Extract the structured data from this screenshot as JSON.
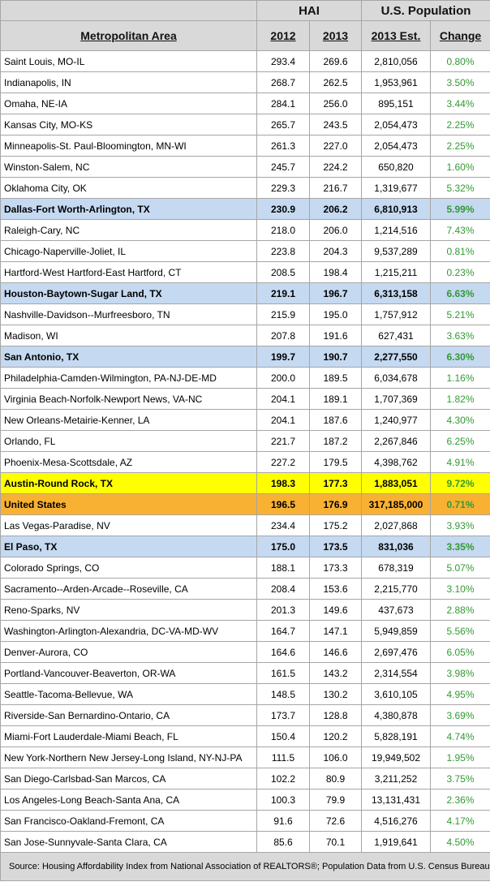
{
  "header": {
    "groups": [
      "HAI",
      "U.S. Population"
    ],
    "columns": [
      "Metropolitan Area",
      "2012",
      "2013",
      "2013 Est.",
      "Change"
    ]
  },
  "rows": [
    [
      "Saint Louis, MO-IL",
      "293.4",
      "269.6",
      "2,810,056",
      "0.80%"
    ],
    [
      "Indianapolis, IN",
      "268.7",
      "262.5",
      "1,953,961",
      "3.50%"
    ],
    [
      "Omaha, NE-IA",
      "284.1",
      "256.0",
      "895,151",
      "3.44%"
    ],
    [
      "Kansas City, MO-KS",
      "265.7",
      "243.5",
      "2,054,473",
      "2.25%"
    ],
    [
      "Minneapolis-St. Paul-Bloomington, MN-WI",
      "261.3",
      "227.0",
      "2,054,473",
      "2.25%"
    ],
    [
      "Winston-Salem, NC",
      "245.7",
      "224.2",
      "650,820",
      "1.60%"
    ],
    [
      "Oklahoma City, OK",
      "229.3",
      "216.7",
      "1,319,677",
      "5.32%"
    ],
    [
      "Dallas-Fort Worth-Arlington, TX",
      "230.9",
      "206.2",
      "6,810,913",
      "5.99%"
    ],
    [
      "Raleigh-Cary, NC",
      "218.0",
      "206.0",
      "1,214,516",
      "7.43%"
    ],
    [
      "Chicago-Naperville-Joliet, IL",
      "223.8",
      "204.3",
      "9,537,289",
      "0.81%"
    ],
    [
      "Hartford-West Hartford-East Hartford, CT",
      "208.5",
      "198.4",
      "1,215,211",
      "0.23%"
    ],
    [
      "Houston-Baytown-Sugar Land, TX",
      "219.1",
      "196.7",
      "6,313,158",
      "6.63%"
    ],
    [
      "Nashville-Davidson--Murfreesboro, TN",
      "215.9",
      "195.0",
      "1,757,912",
      "5.21%"
    ],
    [
      "Madison, WI",
      "207.8",
      "191.6",
      "627,431",
      "3.63%"
    ],
    [
      "San Antonio, TX",
      "199.7",
      "190.7",
      "2,277,550",
      "6.30%"
    ],
    [
      "Philadelphia-Camden-Wilmington, PA-NJ-DE-MD",
      "200.0",
      "189.5",
      "6,034,678",
      "1.16%"
    ],
    [
      "Virginia Beach-Norfolk-Newport News, VA-NC",
      "204.1",
      "189.1",
      "1,707,369",
      "1.82%"
    ],
    [
      "New Orleans-Metairie-Kenner, LA",
      "204.1",
      "187.6",
      "1,240,977",
      "4.30%"
    ],
    [
      "Orlando, FL",
      "221.7",
      "187.2",
      "2,267,846",
      "6.25%"
    ],
    [
      "Phoenix-Mesa-Scottsdale, AZ",
      "227.2",
      "179.5",
      "4,398,762",
      "4.91%"
    ],
    [
      "Austin-Round Rock, TX",
      "198.3",
      "177.3",
      "1,883,051",
      "9.72%"
    ],
    [
      "United States",
      "196.5",
      "176.9",
      "317,185,000",
      "0.71%"
    ],
    [
      "Las Vegas-Paradise, NV",
      "234.4",
      "175.2",
      "2,027,868",
      "3.93%"
    ],
    [
      "El Paso, TX",
      "175.0",
      "173.5",
      "831,036",
      "3.35%"
    ],
    [
      "Colorado Springs, CO",
      "188.1",
      "173.3",
      "678,319",
      "5.07%"
    ],
    [
      "Sacramento--Arden-Arcade--Roseville, CA",
      "208.4",
      "153.6",
      "2,215,770",
      "3.10%"
    ],
    [
      "Reno-Sparks, NV",
      "201.3",
      "149.6",
      "437,673",
      "2.88%"
    ],
    [
      "Washington-Arlington-Alexandria, DC-VA-MD-WV",
      "164.7",
      "147.1",
      "5,949,859",
      "5.56%"
    ],
    [
      "Denver-Aurora, CO",
      "164.6",
      "146.6",
      "2,697,476",
      "6.05%"
    ],
    [
      "Portland-Vancouver-Beaverton, OR-WA",
      "161.5",
      "143.2",
      "2,314,554",
      "3.98%"
    ],
    [
      "Seattle-Tacoma-Bellevue, WA",
      "148.5",
      "130.2",
      "3,610,105",
      "4.95%"
    ],
    [
      "Riverside-San Bernardino-Ontario, CA",
      "173.7",
      "128.8",
      "4,380,878",
      "3.69%"
    ],
    [
      "Miami-Fort Lauderdale-Miami Beach, FL",
      "150.4",
      "120.2",
      "5,828,191",
      "4.74%"
    ],
    [
      "New York-Northern New Jersey-Long Island, NY-NJ-PA",
      "111.5",
      "106.0",
      "19,949,502",
      "1.95%"
    ],
    [
      "San Diego-Carlsbad-San Marcos, CA",
      "102.2",
      "80.9",
      "3,211,252",
      "3.75%"
    ],
    [
      "Los Angeles-Long Beach-Santa Ana, CA",
      "100.3",
      "79.9",
      "13,131,431",
      "2.36%"
    ],
    [
      "San Francisco-Oakland-Fremont, CA",
      "91.6",
      "72.6",
      "4,516,276",
      "4.17%"
    ],
    [
      "San Jose-Sunnyvale-Santa Clara, CA",
      "85.6",
      "70.1",
      "1,919,641",
      "4.50%"
    ]
  ],
  "source": "Source:  Housing Affordability Index from National Association of REALTORS®; Population Data from U.S. Census Bureau"
}
